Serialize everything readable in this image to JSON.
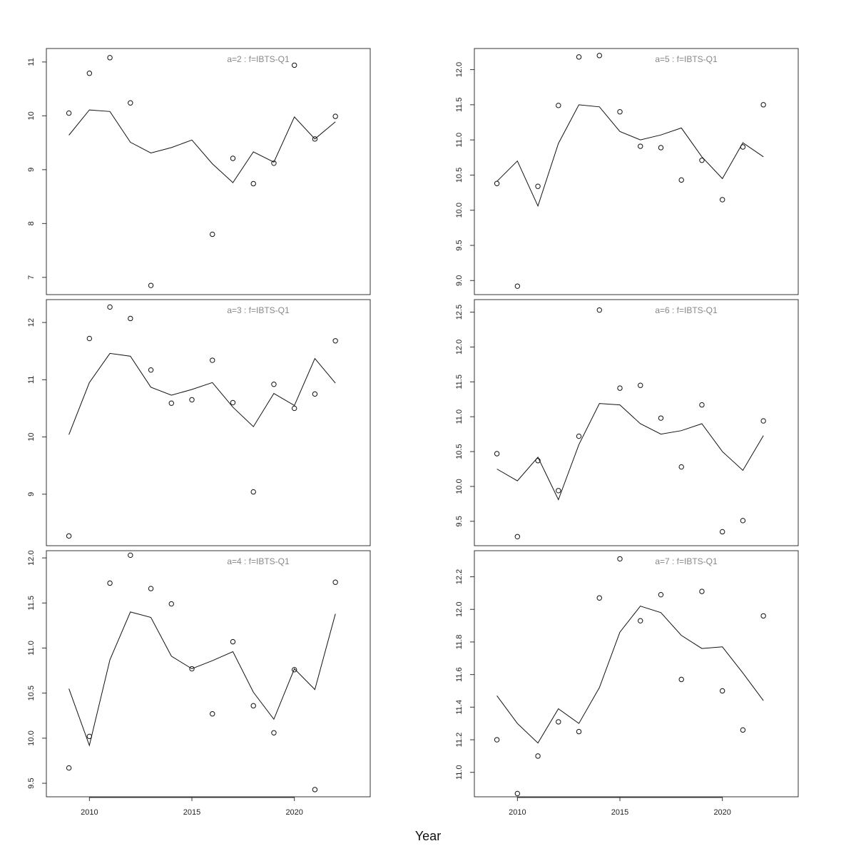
{
  "figure": {
    "xlabel": "Year"
  },
  "chart_data": [
    {
      "type": "scatter",
      "title": "a=2  :  f=IBTS-Q1",
      "x": [
        2009,
        2010,
        2011,
        2012,
        2013,
        2014,
        2015,
        2016,
        2017,
        2018,
        2019,
        2020,
        2021,
        2022
      ],
      "ylim": [
        6.68,
        11.25
      ],
      "yticks": [
        7,
        8,
        9,
        10,
        11
      ],
      "series": [
        {
          "kind": "points",
          "values": [
            10.05,
            10.79,
            11.08,
            10.24,
            6.85,
            null,
            null,
            7.8,
            9.21,
            8.74,
            9.12,
            10.94,
            9.57,
            9.99
          ]
        },
        {
          "kind": "line",
          "values": [
            9.64,
            10.11,
            10.08,
            9.51,
            9.31,
            9.41,
            9.55,
            9.11,
            8.76,
            9.33,
            9.14,
            9.98,
            9.57,
            9.89
          ]
        }
      ]
    },
    {
      "type": "scatter",
      "title": "a=5  :  f=IBTS-Q1",
      "x": [
        2009,
        2010,
        2011,
        2012,
        2013,
        2014,
        2015,
        2016,
        2017,
        2018,
        2019,
        2020,
        2021,
        2022
      ],
      "ylim": [
        8.8,
        12.3
      ],
      "yticks": [
        9.0,
        9.5,
        10.0,
        10.5,
        11.0,
        11.5,
        12.0
      ],
      "series": [
        {
          "kind": "points",
          "values": [
            10.38,
            8.92,
            10.34,
            11.49,
            12.18,
            12.2,
            11.4,
            10.91,
            10.89,
            10.43,
            10.71,
            10.15,
            10.9,
            11.5
          ]
        },
        {
          "kind": "line",
          "values": [
            10.41,
            10.7,
            10.06,
            10.95,
            11.5,
            11.47,
            11.12,
            11.0,
            11.07,
            11.17,
            10.76,
            10.45,
            10.96,
            10.76
          ]
        }
      ]
    },
    {
      "type": "scatter",
      "title": "a=3  :  f=IBTS-Q1",
      "x": [
        2009,
        2010,
        2011,
        2012,
        2013,
        2014,
        2015,
        2016,
        2017,
        2018,
        2019,
        2020,
        2021,
        2022
      ],
      "ylim": [
        8.1,
        12.4
      ],
      "yticks": [
        9,
        10,
        11,
        12
      ],
      "series": [
        {
          "kind": "points",
          "values": [
            8.27,
            11.72,
            12.27,
            12.07,
            11.17,
            10.59,
            10.65,
            11.34,
            10.6,
            9.04,
            10.92,
            10.5,
            10.75,
            11.68
          ]
        },
        {
          "kind": "line",
          "values": [
            10.04,
            10.95,
            11.46,
            11.41,
            10.87,
            10.73,
            10.83,
            10.95,
            10.52,
            10.18,
            10.76,
            10.55,
            11.37,
            10.94
          ]
        }
      ]
    },
    {
      "type": "scatter",
      "title": "a=6  :  f=IBTS-Q1",
      "x": [
        2009,
        2010,
        2011,
        2012,
        2013,
        2014,
        2015,
        2016,
        2017,
        2018,
        2019,
        2020,
        2021,
        2022
      ],
      "ylim": [
        9.15,
        12.68
      ],
      "yticks": [
        9.5,
        10.0,
        10.5,
        11.0,
        11.5,
        12.0,
        12.5
      ],
      "series": [
        {
          "kind": "points",
          "values": [
            10.47,
            9.28,
            10.37,
            9.94,
            10.72,
            12.53,
            11.41,
            11.45,
            10.98,
            10.28,
            11.17,
            9.35,
            9.51,
            10.94
          ]
        },
        {
          "kind": "line",
          "values": [
            10.25,
            10.08,
            10.42,
            9.81,
            10.6,
            11.19,
            11.17,
            10.9,
            10.75,
            10.8,
            10.9,
            10.5,
            10.23,
            10.73
          ]
        }
      ]
    },
    {
      "type": "scatter",
      "title": "a=4  :  f=IBTS-Q1",
      "x": [
        2009,
        2010,
        2011,
        2012,
        2013,
        2014,
        2015,
        2016,
        2017,
        2018,
        2019,
        2020,
        2021,
        2022
      ],
      "ylim": [
        9.35,
        12.08
      ],
      "yticks": [
        9.5,
        10.0,
        10.5,
        11.0,
        11.5,
        12.0
      ],
      "series": [
        {
          "kind": "points",
          "values": [
            9.67,
            10.02,
            11.72,
            12.03,
            11.66,
            11.49,
            10.77,
            10.27,
            11.07,
            10.36,
            10.06,
            10.76,
            9.43,
            11.73
          ]
        },
        {
          "kind": "line",
          "values": [
            10.55,
            9.92,
            10.87,
            11.4,
            11.34,
            10.91,
            10.77,
            10.86,
            10.96,
            10.51,
            10.21,
            10.77,
            10.54,
            11.38
          ]
        }
      ]
    },
    {
      "type": "scatter",
      "title": "a=7  :  f=IBTS-Q1",
      "x": [
        2009,
        2010,
        2011,
        2012,
        2013,
        2014,
        2015,
        2016,
        2017,
        2018,
        2019,
        2020,
        2021,
        2022
      ],
      "ylim": [
        10.85,
        12.36
      ],
      "yticks": [
        11.0,
        11.2,
        11.4,
        11.6,
        11.8,
        12.0,
        12.2
      ],
      "series": [
        {
          "kind": "points",
          "values": [
            11.2,
            10.87,
            11.1,
            11.31,
            11.25,
            12.07,
            12.31,
            11.93,
            12.09,
            11.57,
            12.11,
            11.5,
            11.26,
            11.96
          ]
        },
        {
          "kind": "line",
          "values": [
            11.47,
            11.3,
            11.18,
            11.39,
            11.3,
            11.52,
            11.86,
            12.02,
            11.98,
            11.84,
            11.76,
            11.77,
            11.61,
            11.44
          ]
        }
      ]
    }
  ],
  "xaxis": {
    "xlim": [
      2007.9,
      2023.7
    ],
    "ticks": [
      2010,
      2015,
      2020
    ]
  }
}
